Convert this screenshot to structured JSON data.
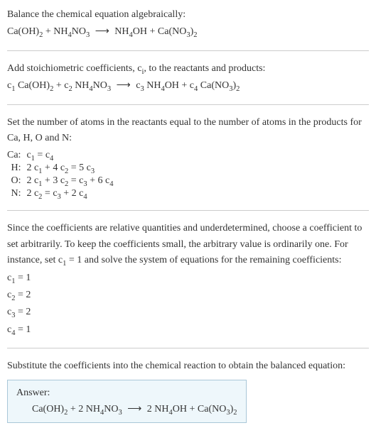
{
  "intro": {
    "title": "Balance the chemical equation algebraically:"
  },
  "step2": {
    "title_html": "Add stoichiometric coefficients, c<sub>i</sub>, to the reactants and products:"
  },
  "step3": {
    "title": "Set the number of atoms in the reactants equal to the number of atoms in the products for Ca, H, O and N:",
    "rows": [
      {
        "label": "Ca:",
        "eqn_html": "c<sub>1</sub> = c<sub>4</sub>"
      },
      {
        "label": "H:",
        "eqn_html": "2 c<sub>1</sub> + 4 c<sub>2</sub> = 5 c<sub>3</sub>"
      },
      {
        "label": "O:",
        "eqn_html": "2 c<sub>1</sub> + 3 c<sub>2</sub> = c<sub>3</sub> + 6 c<sub>4</sub>"
      },
      {
        "label": "N:",
        "eqn_html": "2 c<sub>2</sub> = c<sub>3</sub> + 2 c<sub>4</sub>"
      }
    ]
  },
  "step4": {
    "text_html": "Since the coefficients are relative quantities and underdetermined, choose a coefficient to set arbitrarily. To keep the coefficients small, the arbitrary value is ordinarily one. For instance, set c<sub>1</sub> = 1 and solve the system of equations for the remaining coefficients:",
    "solutions": [
      "c<sub>1</sub> = 1",
      "c<sub>2</sub> = 2",
      "c<sub>3</sub> = 2",
      "c<sub>4</sub> = 1"
    ]
  },
  "step5": {
    "title": "Substitute the coefficients into the chemical reaction to obtain the balanced equation:"
  },
  "answer": {
    "label": "Answer:"
  },
  "colors": {
    "text": "#333333",
    "rule": "#cccccc",
    "box_border": "#a9c7d8",
    "box_bg": "#eef7fb"
  },
  "font": {
    "family": "Georgia, 'Times New Roman', serif",
    "size_pt": 10.5
  }
}
